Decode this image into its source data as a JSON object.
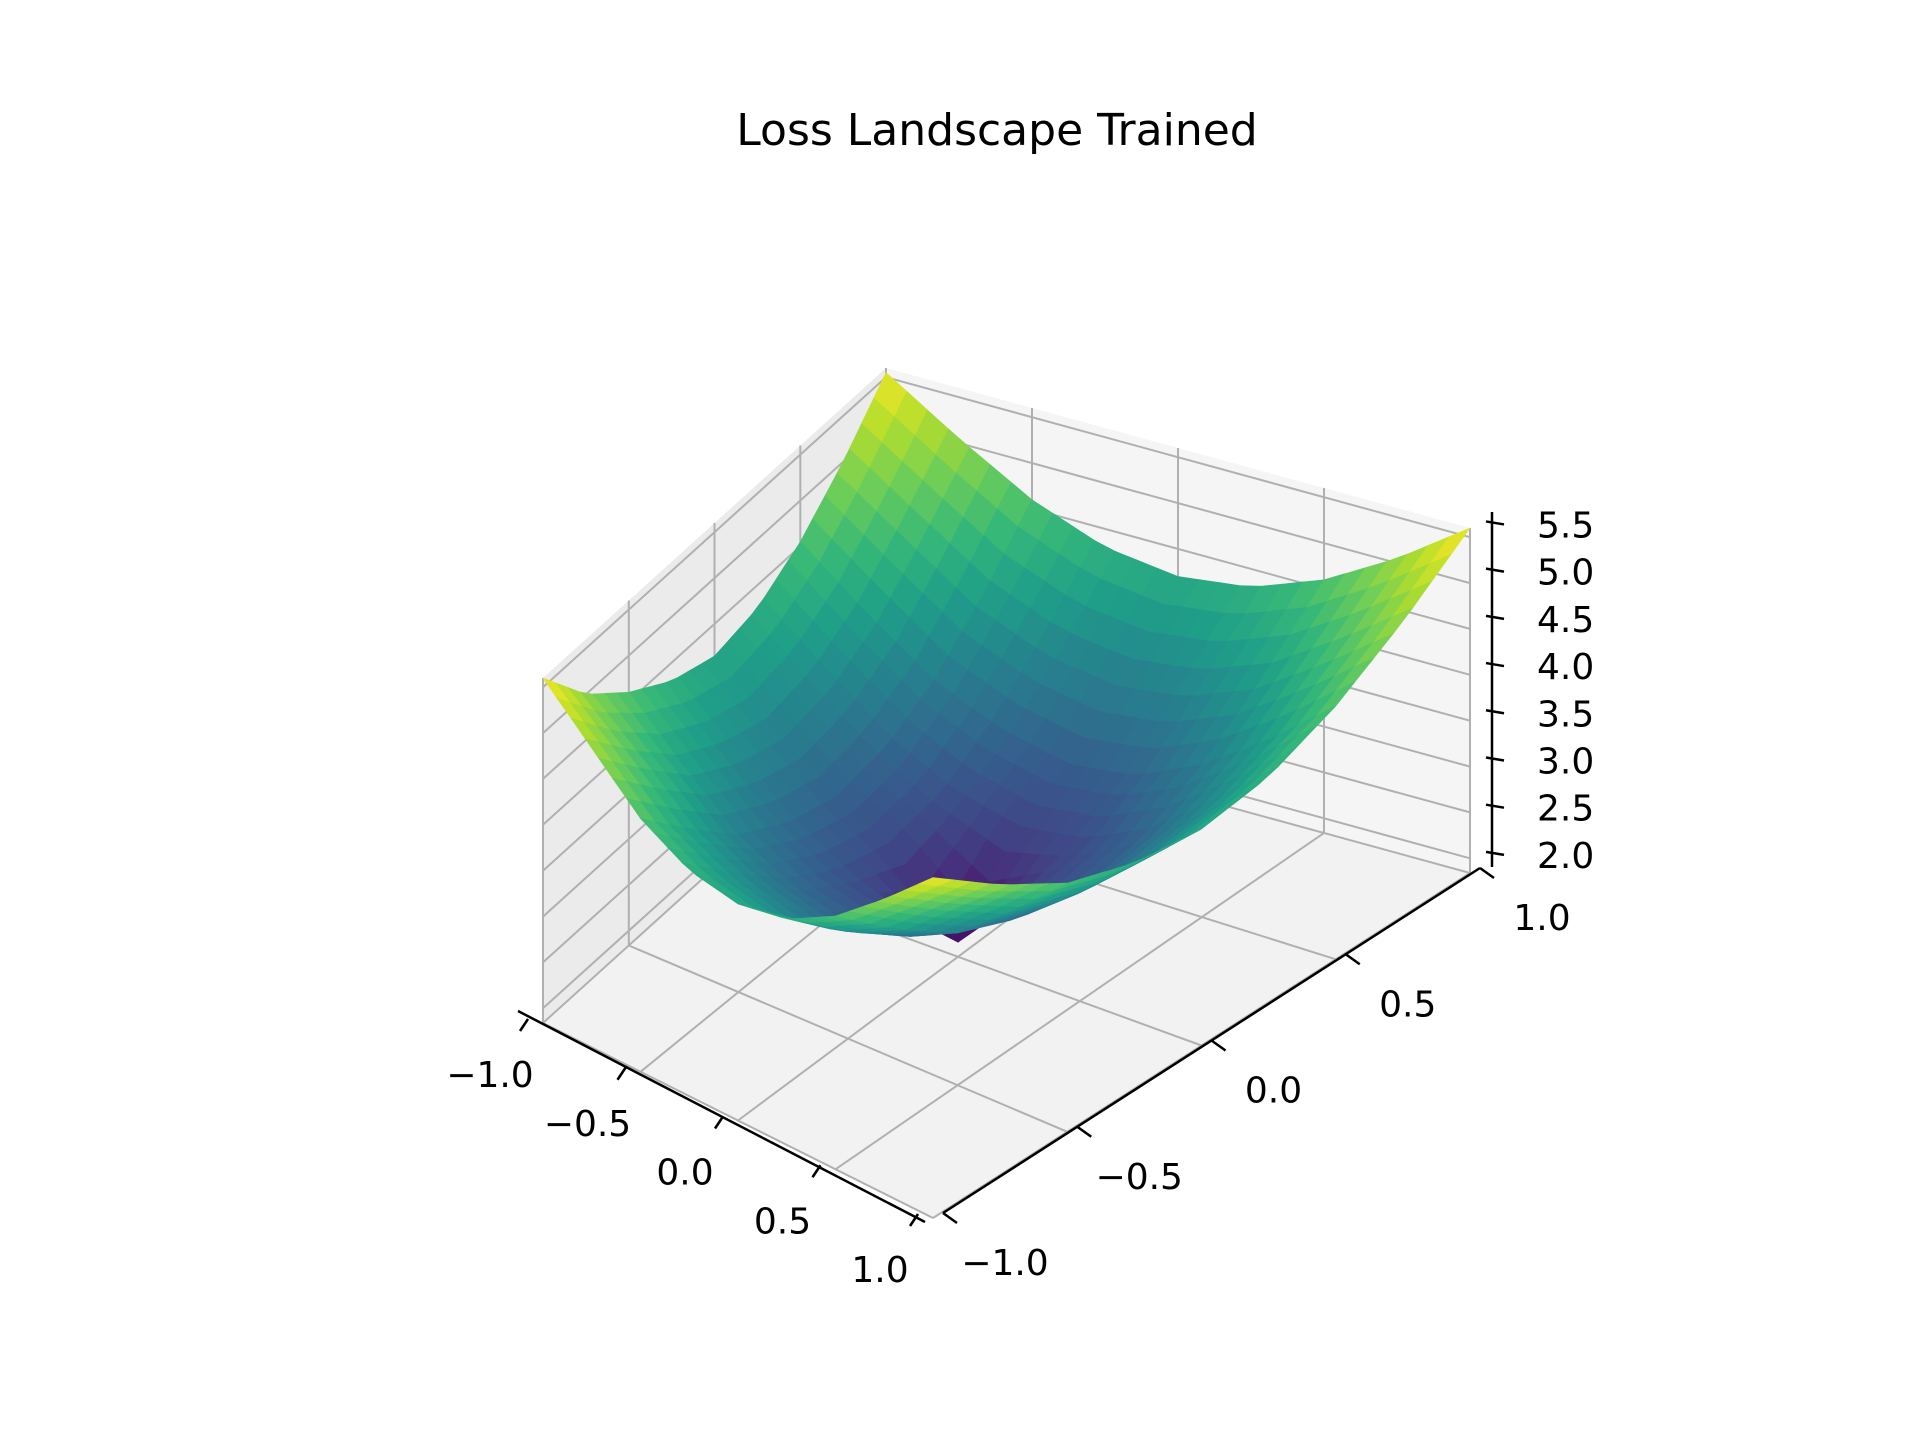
{
  "chart_data": {
    "type": "surface3d",
    "title": "Loss Landscape Trained",
    "xlabel": "",
    "ylabel": "",
    "zlabel": "",
    "xlim": [
      -1.0,
      1.0
    ],
    "ylim": [
      -1.0,
      1.0
    ],
    "zlim": [
      1.84,
      5.6
    ],
    "x_ticks": [
      -1.0,
      -0.5,
      0.0,
      0.5,
      1.0
    ],
    "x_tick_labels": [
      "−1.0",
      "−0.5",
      "0.0",
      "0.5",
      "1.0"
    ],
    "y_ticks": [
      -1.0,
      -0.5,
      0.0,
      0.5,
      1.0
    ],
    "y_tick_labels": [
      "−1.0",
      "−0.5",
      "0.0",
      "0.5",
      "1.0"
    ],
    "z_ticks": [
      2.0,
      2.5,
      3.0,
      3.5,
      4.0,
      4.5,
      5.0,
      5.5
    ],
    "z_tick_labels": [
      "2.0",
      "2.5",
      "3.0",
      "3.5",
      "4.0",
      "4.5",
      "5.0",
      "5.5"
    ],
    "colormap": "viridis",
    "grid": true,
    "surface": {
      "description_formula": "z = 1.9 + 1.9*x^2 + 1.9*y^2 (approx., with small noise)",
      "x": [
        -1.0,
        -0.75,
        -0.5,
        -0.25,
        0.0,
        0.25,
        0.5,
        0.75,
        1.0
      ],
      "y": [
        -1.0,
        -0.75,
        -0.5,
        -0.25,
        0.0,
        0.25,
        0.5,
        0.75,
        1.0
      ],
      "z": [
        [
          5.6,
          5.0,
          4.6,
          4.3,
          4.15,
          4.25,
          4.55,
          5.0,
          5.55
        ],
        [
          5.1,
          4.55,
          4.05,
          3.75,
          3.6,
          3.7,
          4.0,
          4.5,
          5.05
        ],
        [
          4.6,
          4.05,
          3.55,
          3.25,
          3.1,
          3.2,
          3.5,
          4.0,
          4.6
        ],
        [
          4.3,
          3.75,
          3.25,
          2.9,
          2.75,
          2.85,
          3.2,
          3.7,
          4.3
        ],
        [
          4.2,
          3.6,
          3.1,
          2.75,
          2.0,
          2.7,
          3.05,
          3.6,
          4.2
        ],
        [
          4.3,
          3.7,
          3.2,
          2.85,
          2.7,
          2.8,
          3.15,
          3.7,
          4.3
        ],
        [
          4.6,
          4.0,
          3.5,
          3.2,
          3.05,
          3.15,
          3.5,
          4.0,
          4.6
        ],
        [
          5.05,
          4.5,
          4.0,
          3.7,
          3.6,
          3.7,
          4.0,
          4.5,
          5.05
        ],
        [
          5.55,
          5.0,
          4.55,
          4.3,
          4.2,
          4.3,
          4.6,
          5.05,
          5.6
        ]
      ]
    }
  }
}
